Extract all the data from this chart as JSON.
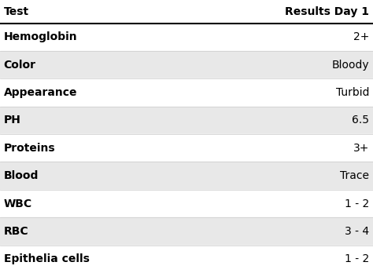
{
  "headers": [
    "Test",
    "Results Day 1"
  ],
  "rows": [
    [
      "Hemoglobin",
      "2+"
    ],
    [
      "Color",
      "Bloody"
    ],
    [
      "Appearance",
      "Turbid"
    ],
    [
      "PH",
      "6.5"
    ],
    [
      "Proteins",
      "3+"
    ],
    [
      "Blood",
      "Trace"
    ],
    [
      "WBC",
      "1 - 2"
    ],
    [
      "RBC",
      "3 - 4"
    ],
    [
      "Epithelia cells",
      "1 - 2"
    ]
  ],
  "header_bg": "#ffffff",
  "row_bg_odd": "#ffffff",
  "row_bg_even": "#e8e8e8",
  "header_text_color": "#000000",
  "row_text_color": "#000000",
  "header_font_size": 10,
  "row_font_size": 10,
  "header_line_color": "#000000",
  "row_line_color": "#cccccc",
  "fig_bg": "#ffffff"
}
